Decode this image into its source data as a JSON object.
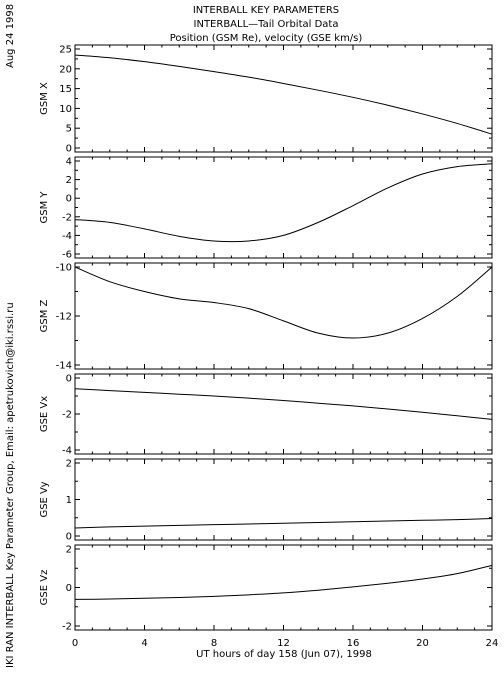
{
  "header": {
    "title_lines": [
      "INTERBALL KEY PARAMETERS",
      "INTERBALL—Tail Orbital Data",
      "Position (GSM Re), velocity (GSE km/s)"
    ]
  },
  "side": {
    "date": "Aug 24 1998",
    "credit": "IKI RAN INTERBALL Key Parameter Group, Email: apetrukovich@iki.rssi.ru"
  },
  "chart_data": {
    "type": "line",
    "xlabel": "UT hours of day 158 (Jun 07), 1998",
    "xlim": [
      0,
      24
    ],
    "xticks": [
      "0",
      "4",
      "8",
      "12",
      "16",
      "20",
      "24"
    ],
    "x": [
      0,
      2,
      4,
      6,
      8,
      10,
      12,
      14,
      16,
      18,
      20,
      22,
      24
    ],
    "panels": [
      {
        "ylabel": "GSM X",
        "ylim": [
          0,
          25
        ],
        "yticks": [
          "0",
          "5",
          "10",
          "15",
          "20",
          "25"
        ],
        "values": [
          23.5,
          22.8,
          21.8,
          20.6,
          19.3,
          17.9,
          16.3,
          14.6,
          12.8,
          10.8,
          8.6,
          6.2,
          3.5
        ]
      },
      {
        "ylabel": "GSM Y",
        "ylim": [
          -6,
          4
        ],
        "yticks": [
          "-6",
          "-4",
          "-2",
          "0",
          "2",
          "4"
        ],
        "values": [
          -2.3,
          -2.6,
          -3.3,
          -4.1,
          -4.6,
          -4.6,
          -4.0,
          -2.6,
          -0.8,
          1.1,
          2.6,
          3.4,
          3.7
        ]
      },
      {
        "ylabel": "GSM Z",
        "ylim": [
          -14,
          -10
        ],
        "yticks": [
          "-14",
          "-12",
          "-10"
        ],
        "values": [
          -10.0,
          -10.6,
          -11.0,
          -11.3,
          -11.45,
          -11.7,
          -12.2,
          -12.7,
          -12.9,
          -12.7,
          -12.1,
          -11.2,
          -10.0
        ]
      },
      {
        "ylabel": "GSE Vx",
        "ylim": [
          -4,
          0
        ],
        "yticks": [
          "-4",
          "-2",
          "0"
        ],
        "values": [
          -0.6,
          -0.7,
          -0.8,
          -0.9,
          -1.0,
          -1.12,
          -1.25,
          -1.4,
          -1.55,
          -1.72,
          -1.9,
          -2.1,
          -2.3
        ]
      },
      {
        "ylabel": "GSE Vy",
        "ylim": [
          0,
          2
        ],
        "yticks": [
          "0",
          "1",
          "2"
        ],
        "values": [
          0.22,
          0.25,
          0.27,
          0.29,
          0.31,
          0.33,
          0.35,
          0.37,
          0.39,
          0.41,
          0.43,
          0.45,
          0.48
        ]
      },
      {
        "ylabel": "GSE Vz",
        "ylim": [
          -2,
          2
        ],
        "yticks": [
          "-2",
          "0",
          "2"
        ],
        "values": [
          -0.62,
          -0.6,
          -0.56,
          -0.52,
          -0.46,
          -0.38,
          -0.28,
          -0.14,
          0.03,
          0.22,
          0.44,
          0.72,
          1.15
        ]
      }
    ]
  }
}
